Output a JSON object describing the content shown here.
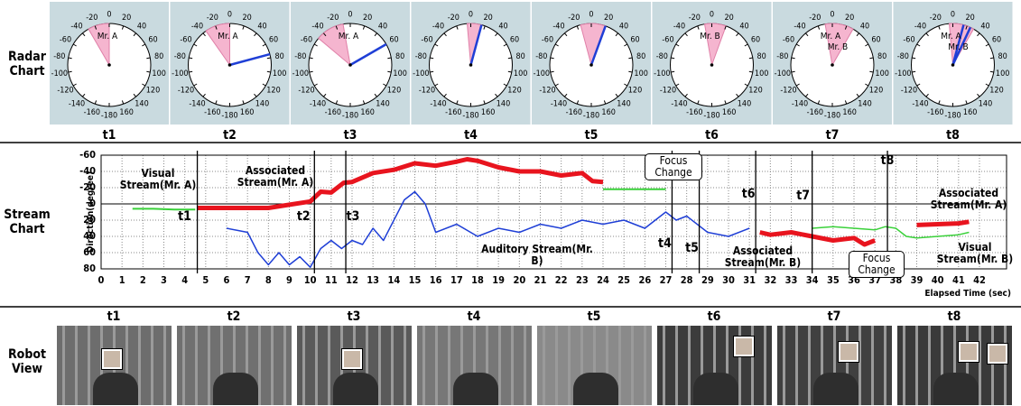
{
  "row_labels": [
    "Radar Chart",
    "Stream Chart",
    "Robot View"
  ],
  "radar": {
    "dial_ticks": [
      0,
      20,
      40,
      60,
      80,
      100,
      120,
      140,
      160,
      -180,
      -160,
      -140,
      -120,
      -100,
      -80,
      -60,
      -40,
      -20
    ],
    "panels": [
      {
        "name": "t1",
        "sector": [
          -30,
          0
        ],
        "beams": [],
        "labels": [
          "Mr. A"
        ]
      },
      {
        "name": "t2",
        "sector": [
          -35,
          0
        ],
        "beams": [
          75
        ],
        "labels": [
          "Mr. A"
        ]
      },
      {
        "name": "t3",
        "sector": [
          -50,
          -10
        ],
        "beams": [
          60
        ],
        "labels": [
          "Mr. A"
        ]
      },
      {
        "name": "t4",
        "sector": [
          -5,
          15
        ],
        "beams": [
          15
        ],
        "labels": []
      },
      {
        "name": "t5",
        "sector": [
          -15,
          20
        ],
        "beams": [
          20
        ],
        "labels": []
      },
      {
        "name": "t6",
        "sector": [
          -10,
          20
        ],
        "beams": [],
        "labels": [
          "Mr. B"
        ]
      },
      {
        "name": "t7",
        "sector": [
          -10,
          30
        ],
        "beams": [],
        "labels": [
          "Mr. A",
          "Mr. B"
        ]
      },
      {
        "name": "t8",
        "sector": [
          -5,
          30
        ],
        "beams": [
          15,
          25
        ],
        "labels": [
          "Mr. A",
          "Mr. B"
        ]
      }
    ]
  },
  "chart_data": {
    "type": "line",
    "y_label": "Direction(degree)",
    "x_label": "Elapsed Time (sec)",
    "xlim": [
      0,
      42
    ],
    "xticks": [
      0,
      1,
      2,
      3,
      4,
      5,
      6,
      7,
      8,
      9,
      10,
      11,
      12,
      13,
      14,
      15,
      16,
      17,
      18,
      19,
      20,
      21,
      22,
      23,
      24,
      25,
      26,
      27,
      28,
      29,
      30,
      31,
      32,
      33,
      34,
      35,
      36,
      37,
      38,
      39,
      40,
      41,
      42
    ],
    "ylim": [
      80,
      -60
    ],
    "yticks": [
      -60,
      -40,
      -20,
      0,
      20,
      40,
      60,
      80
    ],
    "grid": true,
    "series": [
      {
        "name": "Visual Stream(Mr. A)",
        "color": "#3ad13a",
        "x": [
          1.5,
          2.5,
          3.5,
          4.5,
          14,
          24,
          25,
          26,
          27
        ],
        "values": [
          6,
          6,
          7,
          7,
          null,
          -18,
          -18,
          -18,
          -18
        ]
      },
      {
        "name": "Associated Stream(Mr. A)",
        "color": "#e8141e",
        "x": [
          4.6,
          6,
          8,
          10,
          10.5,
          11,
          11.6,
          12,
          13,
          14,
          15,
          16,
          17,
          17.5,
          18,
          19,
          20,
          21,
          22,
          23,
          23.5,
          24,
          30,
          39,
          40,
          41,
          41.5
        ],
        "values": [
          5,
          5,
          5,
          -3,
          -15,
          -14,
          -26,
          -27,
          -38,
          -42,
          -50,
          -47,
          -52,
          -55,
          -53,
          -45,
          -40,
          -40,
          -35,
          -38,
          -28,
          -27,
          null,
          26,
          25,
          24,
          22
        ]
      },
      {
        "name": "Auditory Stream(Mr. B)",
        "color": "#1f3fd6",
        "x": [
          6,
          7,
          7.5,
          8,
          8.5,
          9,
          9.5,
          10,
          10.5,
          11,
          11.5,
          12,
          12.5,
          13,
          13.5,
          14,
          14.5,
          15,
          15.5,
          16,
          17,
          18,
          19,
          20,
          21,
          22,
          23,
          24,
          25,
          26,
          27,
          27.5,
          28,
          29,
          30,
          31
        ],
        "values": [
          30,
          35,
          60,
          75,
          60,
          75,
          65,
          78,
          55,
          45,
          55,
          45,
          50,
          30,
          45,
          20,
          -5,
          -15,
          0,
          35,
          25,
          40,
          30,
          35,
          25,
          30,
          20,
          25,
          20,
          30,
          10,
          20,
          15,
          35,
          40,
          30
        ]
      },
      {
        "name": "Associated Stream(Mr. B)",
        "color": "#e8141e",
        "x": [
          31.5,
          32,
          33,
          34,
          35,
          36,
          36.5,
          37
        ],
        "values": [
          35,
          38,
          35,
          40,
          45,
          42,
          50,
          45
        ]
      },
      {
        "name": "Visual Stream(Mr. B)",
        "color": "#3ad13a",
        "x": [
          34,
          35,
          36,
          37,
          37.5,
          38,
          38.5,
          39,
          40,
          41,
          41.5
        ],
        "values": [
          30,
          28,
          30,
          32,
          28,
          30,
          40,
          42,
          40,
          38,
          35
        ]
      }
    ],
    "markers": [
      {
        "label": "t1",
        "x": 4.6
      },
      {
        "label": "t2",
        "x": 10.2
      },
      {
        "label": "t3",
        "x": 11.7
      },
      {
        "label": "t4",
        "x": 27.3
      },
      {
        "label": "t5",
        "x": 28.6
      },
      {
        "label": "t6",
        "x": 31.3
      },
      {
        "label": "t7",
        "x": 34
      },
      {
        "label": "t8",
        "x": 37.6
      }
    ],
    "annotations": [
      "Focus Change",
      "Focus Change"
    ]
  },
  "robot_view": {
    "labels": [
      "t1",
      "t2",
      "t3",
      "t4",
      "t5",
      "t6",
      "t7",
      "t8"
    ]
  }
}
